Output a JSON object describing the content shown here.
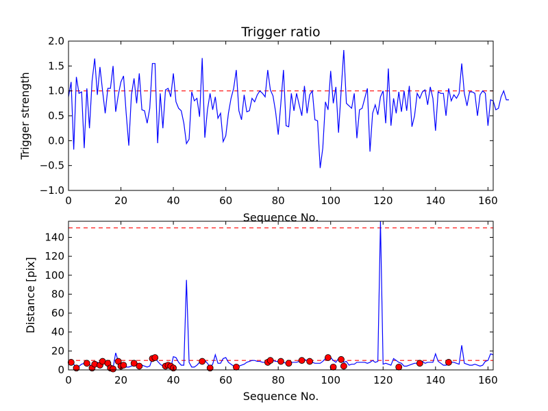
{
  "chart_data": [
    {
      "type": "line",
      "title": "Trigger ratio",
      "xlabel": "Sequence No.",
      "ylabel": "Trigger strength",
      "xlim": [
        0,
        162
      ],
      "ylim": [
        -1.0,
        2.0
      ],
      "xticks": [
        0,
        20,
        40,
        60,
        80,
        100,
        120,
        140,
        160
      ],
      "yticks": [
        -1.0,
        -0.5,
        0.0,
        0.5,
        1.0,
        1.5,
        2.0
      ],
      "xtick_labels": [
        "0",
        "20",
        "40",
        "60",
        "80",
        "100",
        "120",
        "140",
        "160"
      ],
      "ytick_labels": [
        "−1.0",
        "−0.5",
        "0.0",
        "0.5",
        "1.0",
        "1.5",
        "2.0"
      ],
      "reference_line": {
        "y": 1.0,
        "color": "#ff0000",
        "style": "dashed"
      },
      "series": [
        {
          "name": "trigger strength",
          "color": "#0000ff",
          "values": [
            0.88,
            1.18,
            -0.18,
            1.28,
            0.95,
            0.98,
            -0.15,
            1.05,
            0.25,
            1.2,
            1.65,
            0.92,
            1.48,
            1.0,
            0.55,
            1.05,
            1.05,
            1.5,
            0.58,
            0.92,
            1.18,
            1.3,
            0.55,
            -0.1,
            0.92,
            1.25,
            0.75,
            1.35,
            0.62,
            0.6,
            0.35,
            0.65,
            1.55,
            1.55,
            -0.05,
            0.95,
            0.25,
            1.02,
            1.05,
            0.88,
            1.35,
            0.78,
            0.65,
            0.6,
            0.35,
            -0.06,
            0.03,
            0.98,
            0.8,
            0.85,
            0.48,
            1.66,
            0.06,
            0.62,
            0.95,
            0.62,
            0.88,
            0.45,
            0.55,
            -0.02,
            0.1,
            0.55,
            0.85,
            1.05,
            1.42,
            0.6,
            0.42,
            0.92,
            0.58,
            0.6,
            0.85,
            0.78,
            0.92,
            1.0,
            0.95,
            0.88,
            1.42,
            1.02,
            0.9,
            0.58,
            0.12,
            0.75,
            1.42,
            0.3,
            0.28,
            0.95,
            0.6,
            0.95,
            0.72,
            0.5,
            1.1,
            0.55,
            0.92,
            1.0,
            0.42,
            0.4,
            -0.55,
            -0.15,
            0.78,
            0.62,
            1.4,
            0.75,
            1.08,
            0.16,
            1.0,
            1.82,
            0.75,
            0.7,
            0.65,
            0.95,
            0.05,
            0.62,
            0.65,
            0.85,
            1.05,
            -0.22,
            0.55,
            0.72,
            0.52,
            0.88,
            1.0,
            0.35,
            1.45,
            0.3,
            0.85,
            0.55,
            0.98,
            0.58,
            1.0,
            0.6,
            1.1,
            0.28,
            0.5,
            0.95,
            0.85,
            0.98,
            1.02,
            0.72,
            1.08,
            0.85,
            0.2,
            0.98,
            0.95,
            0.95,
            0.5,
            1.05,
            0.8,
            0.92,
            0.85,
            0.95,
            1.55,
            0.95,
            0.7,
            0.98,
            0.98,
            0.95,
            0.5,
            0.92,
            1.0,
            0.95,
            0.3,
            0.82,
            0.8,
            0.62,
            0.65,
            0.88,
            1.0,
            0.82,
            0.82
          ]
        }
      ]
    },
    {
      "type": "line",
      "title": "",
      "xlabel": "Sequence No.",
      "ylabel": "Distance [pix]",
      "xlim": [
        0,
        162
      ],
      "ylim": [
        0,
        157
      ],
      "xticks": [
        0,
        20,
        40,
        60,
        80,
        100,
        120,
        140,
        160
      ],
      "yticks": [
        0,
        20,
        40,
        60,
        80,
        100,
        120,
        140
      ],
      "xtick_labels": [
        "0",
        "20",
        "40",
        "60",
        "80",
        "100",
        "120",
        "140",
        "160"
      ],
      "ytick_labels": [
        "0",
        "20",
        "40",
        "60",
        "80",
        "100",
        "120",
        "140"
      ],
      "reference_lines": [
        {
          "y": 10,
          "color": "#ff0000",
          "style": "dashed"
        },
        {
          "y": 150,
          "color": "#ff0000",
          "style": "dashed"
        }
      ],
      "series": [
        {
          "name": "distance",
          "color": "#0000ff",
          "values": [
            5,
            8,
            6,
            2,
            4,
            6,
            7,
            8,
            6,
            2,
            5,
            8,
            7,
            10,
            9,
            6,
            4,
            2,
            18,
            9,
            5,
            4,
            3,
            3,
            4,
            5,
            6,
            7,
            5,
            4,
            3,
            4,
            12,
            13,
            9,
            6,
            4,
            3,
            2,
            2,
            14,
            13,
            8,
            5,
            5,
            95,
            8,
            3,
            3,
            5,
            8,
            9,
            10,
            7,
            3,
            6,
            16,
            7,
            7,
            12,
            13,
            8,
            6,
            4,
            3,
            4,
            5,
            6,
            8,
            9,
            10,
            10,
            9,
            9,
            8,
            8,
            7,
            9,
            10,
            9,
            9,
            8,
            8,
            7,
            8,
            8,
            8,
            8,
            9,
            10,
            11,
            10,
            9,
            8,
            7,
            7,
            7,
            9,
            12,
            13,
            13,
            10,
            8,
            12,
            13,
            8,
            9,
            5,
            6,
            6,
            8,
            8,
            8,
            8,
            7,
            8,
            10,
            8,
            9,
            160,
            6,
            7,
            6,
            5,
            12,
            10,
            8,
            7,
            4,
            4,
            5,
            6,
            7,
            7,
            8,
            9,
            7,
            8,
            8,
            8,
            17,
            9,
            7,
            5,
            5,
            6,
            8,
            8,
            7,
            6,
            26,
            7,
            6,
            5,
            5,
            6,
            5,
            4,
            5,
            9,
            10,
            17,
            16
          ]
        }
      ],
      "markers": {
        "color": "#ff0000",
        "points": [
          [
            1,
            8
          ],
          [
            3,
            2
          ],
          [
            7,
            7
          ],
          [
            9,
            2
          ],
          [
            10,
            6
          ],
          [
            12,
            5
          ],
          [
            13,
            9
          ],
          [
            15,
            7
          ],
          [
            16,
            2
          ],
          [
            17,
            1
          ],
          [
            19,
            9
          ],
          [
            20,
            4
          ],
          [
            21,
            5
          ],
          [
            25,
            7
          ],
          [
            27,
            4
          ],
          [
            32,
            12
          ],
          [
            33,
            13
          ],
          [
            37,
            4
          ],
          [
            38,
            5
          ],
          [
            39,
            4
          ],
          [
            40,
            2
          ],
          [
            51,
            9
          ],
          [
            54,
            2
          ],
          [
            64,
            3
          ],
          [
            76,
            8
          ],
          [
            77,
            10
          ],
          [
            81,
            9
          ],
          [
            84,
            7
          ],
          [
            89,
            10
          ],
          [
            92,
            9
          ],
          [
            99,
            13
          ],
          [
            101,
            3
          ],
          [
            104,
            11
          ],
          [
            105,
            4
          ],
          [
            126,
            3
          ],
          [
            134,
            7
          ],
          [
            145,
            8
          ]
        ]
      }
    }
  ]
}
